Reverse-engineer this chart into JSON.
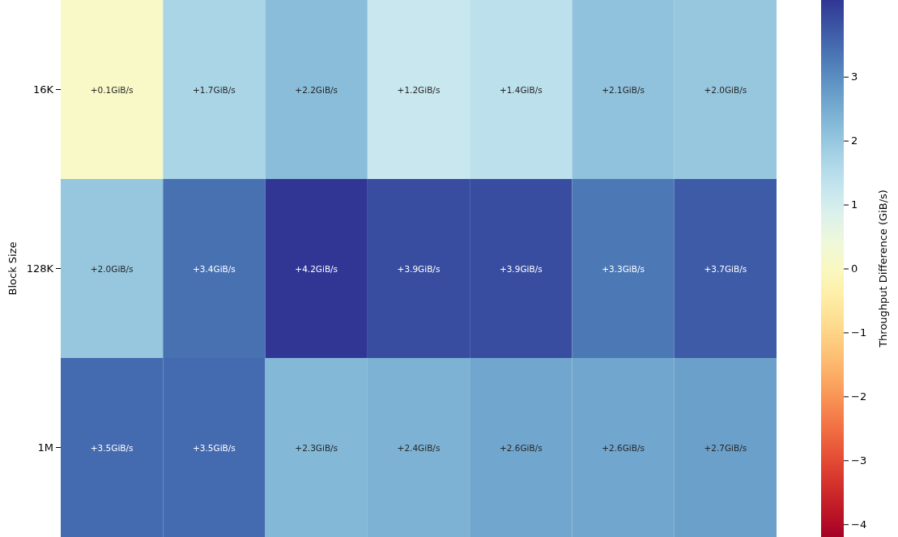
{
  "chart_data": {
    "type": "heatmap",
    "ylabel": "Block Size",
    "clabel": "Throughput Difference (GiB/s)",
    "categories": [
      null,
      null,
      null,
      null,
      null,
      null,
      null
    ],
    "y_categories": [
      "16K",
      "128K",
      "1M"
    ],
    "cells": [
      [
        0.1,
        1.7,
        2.2,
        1.2,
        1.4,
        2.1,
        2.0
      ],
      [
        2.0,
        3.4,
        4.2,
        3.9,
        3.9,
        3.3,
        3.7
      ],
      [
        3.5,
        3.5,
        2.3,
        2.4,
        2.6,
        2.6,
        2.7
      ]
    ],
    "cell_labels": [
      [
        "+0.1GiB/s",
        "+1.7GiB/s",
        "+2.2GiB/s",
        "+1.2GiB/s",
        "+1.4GiB/s",
        "+2.1GiB/s",
        "+2.0GiB/s"
      ],
      [
        "+2.0GiB/s",
        "+3.4GiB/s",
        "+4.2GiB/s",
        "+3.9GiB/s",
        "+3.9GiB/s",
        "+3.3GiB/s",
        "+3.7GiB/s"
      ],
      [
        "+3.5GiB/s",
        "+3.5GiB/s",
        "+2.3GiB/s",
        "+2.4GiB/s",
        "+2.6GiB/s",
        "+2.6GiB/s",
        "+2.7GiB/s"
      ]
    ],
    "clim": [
      -4.2,
      4.2
    ],
    "cticks": [
      -4,
      -3,
      -2,
      -1,
      0,
      1,
      2,
      3
    ]
  }
}
